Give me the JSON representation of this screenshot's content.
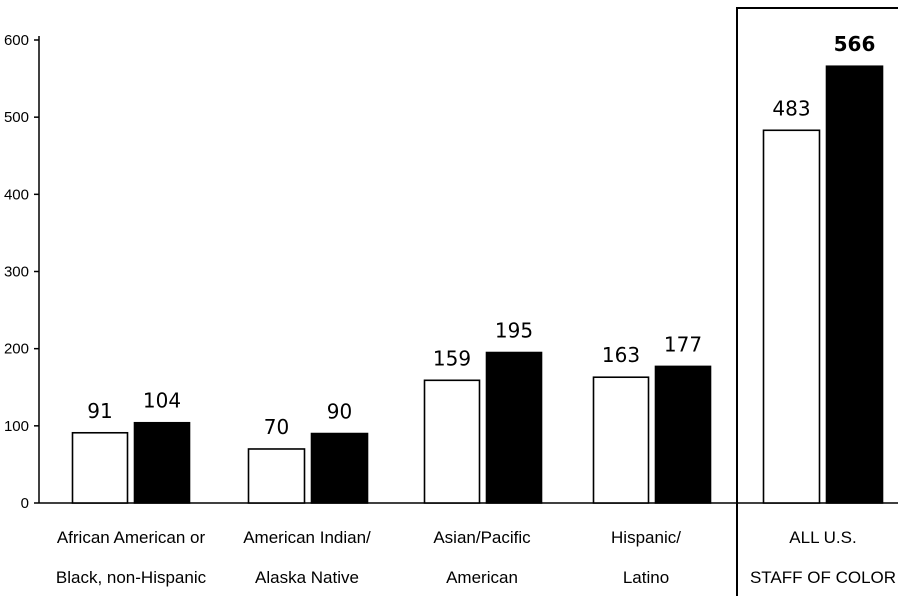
{
  "chart_data": {
    "type": "bar",
    "categories": [
      [
        "African American or",
        "Black, non-Hispanic"
      ],
      [
        "American Indian/",
        "Alaska Native"
      ],
      [
        "Asian/Pacific",
        "American"
      ],
      [
        "Hispanic/",
        "Latino"
      ],
      [
        "ALL U.S.",
        "STAFF OF COLOR"
      ]
    ],
    "series": [
      {
        "fill": "#ffffff",
        "values": [
          91,
          70,
          159,
          163,
          483
        ]
      },
      {
        "fill": "#000000",
        "values": [
          104,
          90,
          195,
          177,
          566
        ]
      }
    ],
    "value_labels": [
      [
        "91",
        "70",
        "159",
        "163",
        "483"
      ],
      [
        "104",
        "90",
        "195",
        "177",
        "566"
      ]
    ],
    "ylim": [
      0,
      600
    ],
    "yticks": [
      "0",
      "100",
      "200",
      "300",
      "400",
      "500",
      "600"
    ],
    "highlight_last_category": true,
    "title": "",
    "xlabel": "",
    "ylabel": "",
    "grid": false
  }
}
